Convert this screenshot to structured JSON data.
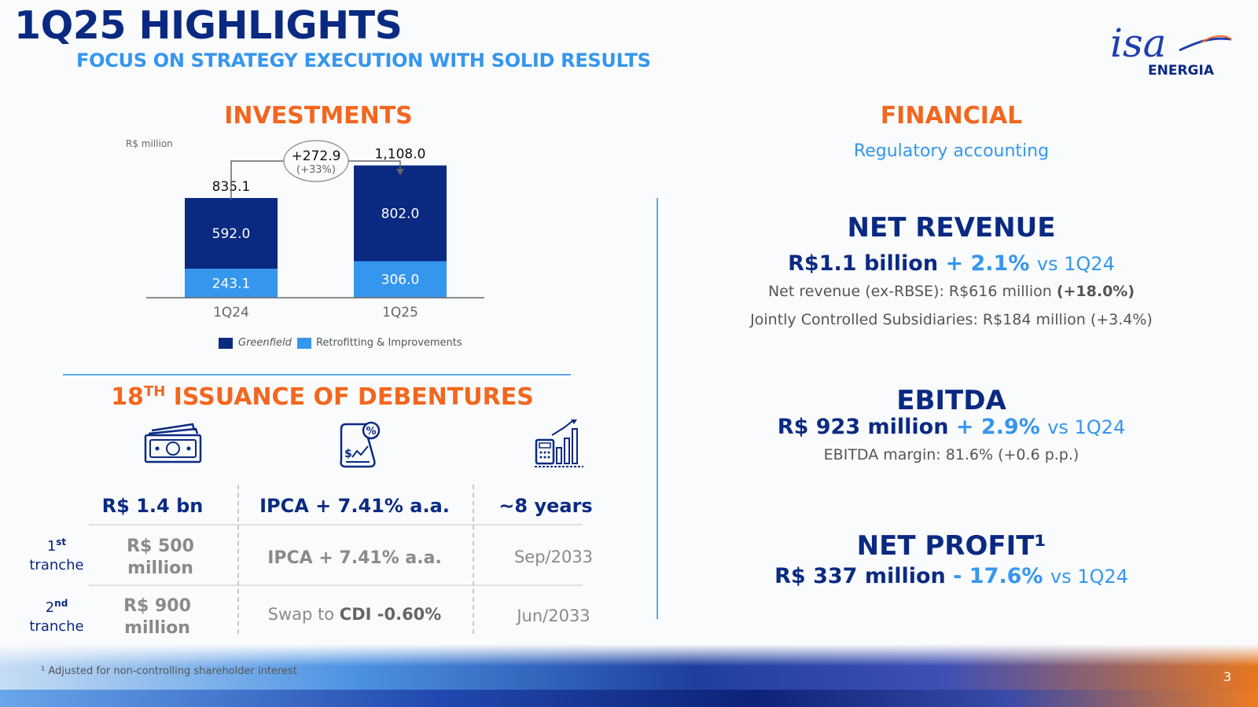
{
  "header": {
    "title": "1Q25 HIGHLIGHTS",
    "subtitle": "FOCUS ON STRATEGY EXECUTION WITH SOLID RESULTS",
    "logo_script": "isa",
    "logo_text": "ENERGIA"
  },
  "investments": {
    "title": "INVESTMENTS",
    "unit": "R$ million",
    "delta_value": "+272.9",
    "delta_pct": "(+33%)"
  },
  "chart_data": {
    "type": "bar",
    "stacked": true,
    "categories": [
      "1Q24",
      "1Q25"
    ],
    "series": [
      {
        "name": "Greenfield",
        "color": "#0a2a82",
        "values": [
          592.0,
          802.0
        ]
      },
      {
        "name": "Retrofitting & Improvements",
        "color": "#3596ee",
        "values": [
          243.1,
          306.0
        ]
      }
    ],
    "series_labels": [
      [
        "592.0",
        "802.0"
      ],
      [
        "243.1",
        "306.0"
      ]
    ],
    "totals": [
      835.1,
      1108.0
    ],
    "total_labels": [
      "835.1",
      "1,108.0"
    ],
    "legend_position": "bottom",
    "grid": false
  },
  "debentures": {
    "title_prefix": "18",
    "title_sup": "TH",
    "title_suffix": " ISSUANCE OF DEBENTURES",
    "icons": [
      "money-icon",
      "percentage-document-icon",
      "calculator-growth-icon"
    ],
    "headers": [
      "R$ 1.4 bn",
      "IPCA + 7.41% a.a.",
      "~8 years"
    ],
    "tranches": [
      {
        "ordinal": "1",
        "ordinal_sup": "st",
        "label": "tranche",
        "amount_line1": "R$ 500",
        "amount_line2": "million",
        "rate": "IPCA + 7.41% a.a.",
        "maturity": "Sep/2033"
      },
      {
        "ordinal": "2",
        "ordinal_sup": "nd",
        "label": "tranche",
        "amount_line1": "R$ 900",
        "amount_line2": "million",
        "rate_prefix": "Swap to ",
        "rate_bold": "CDI -0.60%",
        "maturity": "Jun/2033"
      }
    ]
  },
  "financial": {
    "title": "FINANCIAL",
    "subtitle": "Regulatory accounting",
    "net_revenue": {
      "title": "NET REVENUE",
      "value": "R$1.1 billion",
      "change": "+ 2.1%",
      "vs": "vs 1Q24",
      "detail1_text": "Net revenue (ex-RBSE): R$616 million ",
      "detail1_bold": "(+18.0%)",
      "detail2": "Jointly Controlled Subsidiaries: R$184 million (+3.4%)"
    },
    "ebitda": {
      "title": "EBITDA",
      "value": "R$ 923 million",
      "change": "+ 2.9%",
      "vs": "vs 1Q24",
      "detail": "EBITDA margin: 81.6% (+0.6 p.p.)"
    },
    "net_profit": {
      "title": "NET PROFIT¹",
      "value": "R$ 337 million",
      "change": "- 17.6%",
      "vs": "vs 1Q24"
    }
  },
  "footer": {
    "footnote": "¹ Adjusted for non-controlling shareholder interest",
    "page": "3"
  }
}
